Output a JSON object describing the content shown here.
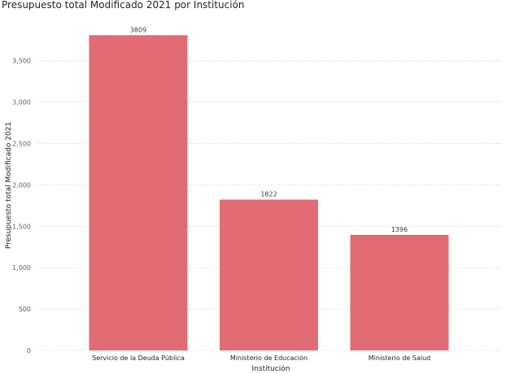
{
  "chart_data": {
    "type": "bar",
    "title": "Presupuesto total Modificado 2021 por Institución",
    "xlabel": "Institución",
    "ylabel": "Presupuesto total Modificado 2021",
    "categories": [
      "Servicio de la Deuda Pública",
      "Ministerio de Educación",
      "Ministerio de Salud"
    ],
    "values": [
      3809,
      1822,
      1396
    ],
    "data_labels": [
      "3809",
      "1822",
      "1396"
    ],
    "yticks": [
      0,
      500,
      1000,
      1500,
      2000,
      2500,
      3000,
      3500
    ],
    "ytick_labels": [
      "0",
      "500",
      "1,000",
      "1,500",
      "2,000",
      "2,500",
      "3,000",
      "3,500"
    ],
    "ylim": [
      0,
      3900
    ],
    "grid": true,
    "legend": "none",
    "colors": {
      "bar": "#e06b74"
    }
  }
}
